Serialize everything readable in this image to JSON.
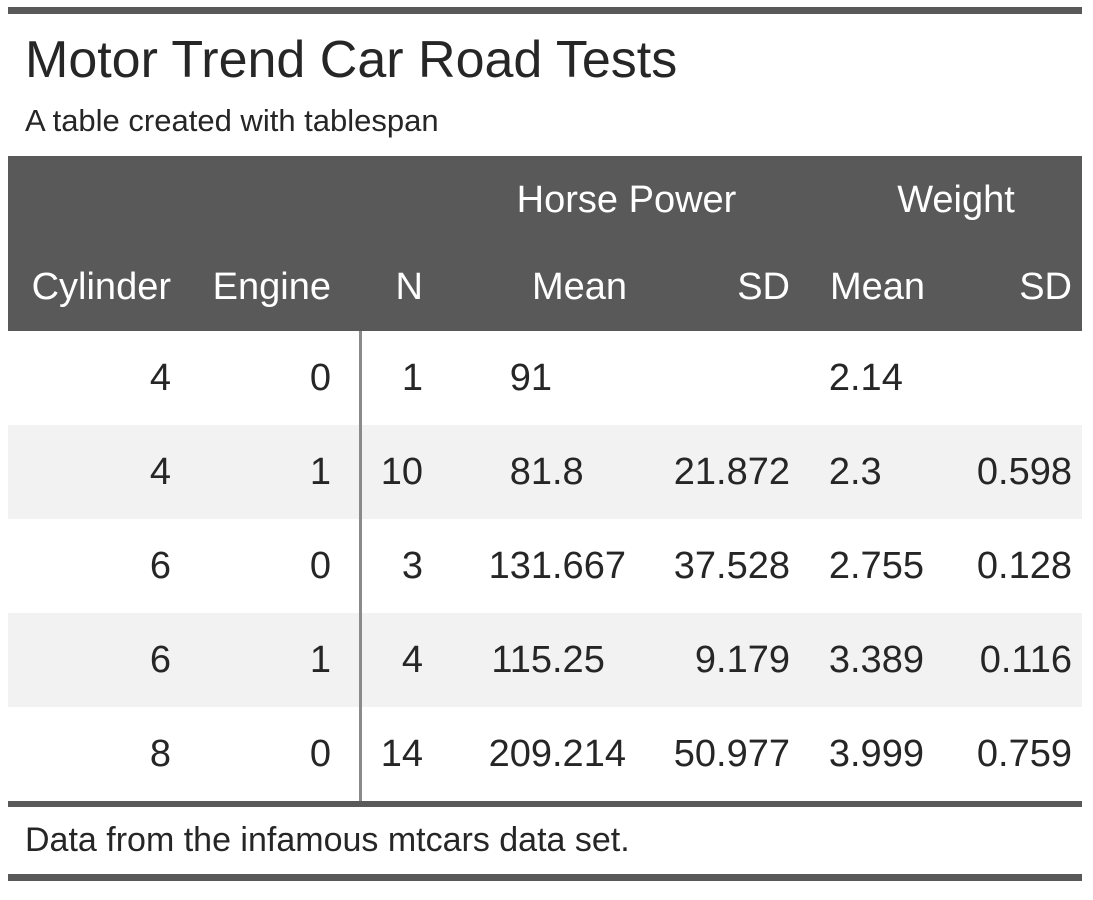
{
  "title": "Motor Trend Car Road Tests",
  "subtitle": "A table created with tablespan",
  "footnote": "Data from the infamous mtcars data set.",
  "table": {
    "spanners": [
      {
        "label": "Horse Power",
        "span_columns": [
          "Mean",
          "SD"
        ]
      },
      {
        "label": "Weight",
        "span_columns": [
          "Mean",
          "SD"
        ]
      }
    ],
    "columns": [
      "Cylinder",
      "Engine",
      "N",
      "Mean",
      "SD",
      "Mean",
      "SD"
    ],
    "rows": [
      [
        "4",
        "0",
        "1",
        "91",
        "",
        "2.14",
        ""
      ],
      [
        "4",
        "1",
        "10",
        "81.8",
        "21.872",
        "2.3",
        "0.598"
      ],
      [
        "6",
        "0",
        "3",
        "131.667",
        "37.528",
        "2.755",
        "0.128"
      ],
      [
        "6",
        "1",
        "4",
        "115.25",
        "9.179",
        "3.389",
        "0.116"
      ],
      [
        "8",
        "0",
        "14",
        "209.214",
        "50.977",
        "3.999",
        "0.759"
      ]
    ]
  },
  "chart_data": {
    "type": "table",
    "title": "Motor Trend Car Road Tests",
    "subtitle": "A table created with tablespan",
    "footnote": "Data from the infamous mtcars data set.",
    "column_groups": [
      "",
      "",
      "",
      "Horse Power",
      "Horse Power",
      "Weight",
      "Weight"
    ],
    "columns": [
      "Cylinder",
      "Engine",
      "N",
      "Mean",
      "SD",
      "Mean",
      "SD"
    ],
    "rows": [
      {
        "cylinder": 4,
        "engine": 0,
        "n": 1,
        "hp_mean": 91,
        "hp_sd": null,
        "wt_mean": 2.14,
        "wt_sd": null
      },
      {
        "cylinder": 4,
        "engine": 1,
        "n": 10,
        "hp_mean": 81.8,
        "hp_sd": 21.872,
        "wt_mean": 2.3,
        "wt_sd": 0.598
      },
      {
        "cylinder": 6,
        "engine": 0,
        "n": 3,
        "hp_mean": 131.667,
        "hp_sd": 37.528,
        "wt_mean": 2.755,
        "wt_sd": 0.128
      },
      {
        "cylinder": 6,
        "engine": 1,
        "n": 4,
        "hp_mean": 115.25,
        "hp_sd": 9.179,
        "wt_mean": 3.389,
        "wt_sd": 0.116
      },
      {
        "cylinder": 8,
        "engine": 0,
        "n": 14,
        "hp_mean": 209.214,
        "hp_sd": 50.977,
        "wt_mean": 3.999,
        "wt_sd": 0.759
      }
    ]
  },
  "colors": {
    "header_bg": "#595959",
    "rule": "#595959",
    "divider": "#8a8a8a",
    "alt_row_bg": "#f2f2f2",
    "text": "#262626",
    "header_text": "#ffffff"
  }
}
